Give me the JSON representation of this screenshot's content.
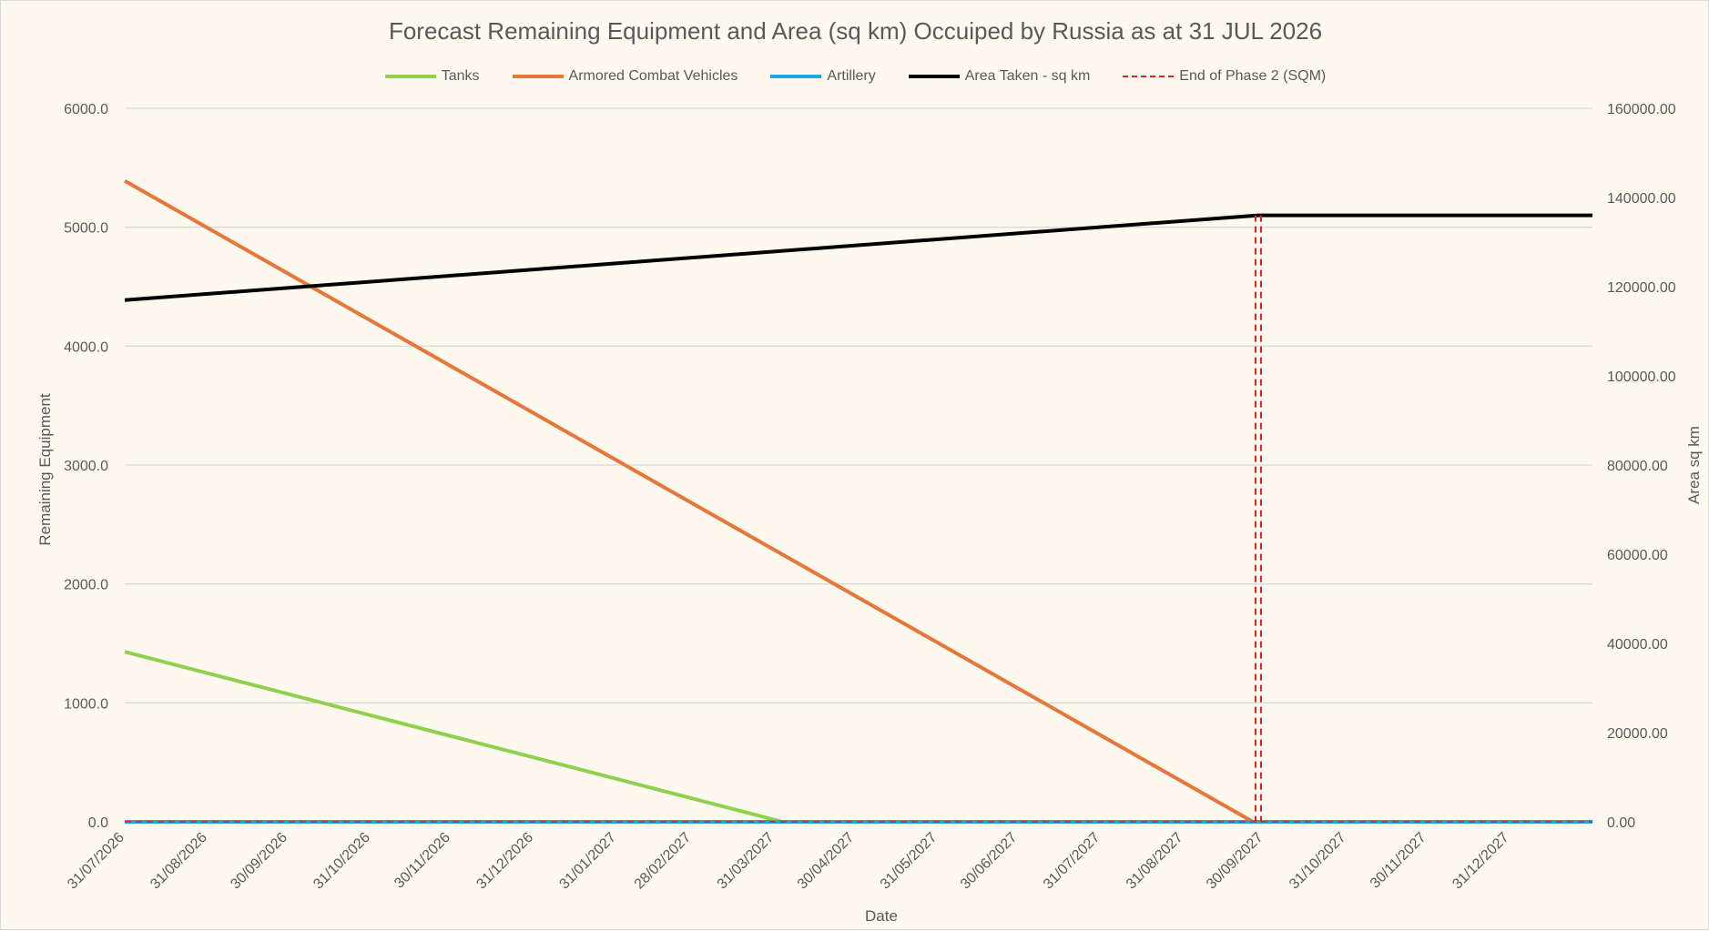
{
  "chart_data": {
    "type": "line",
    "title": "Forecast Remaining Equipment and Area (sq km) Occuiped by Russia as at 31 JUL 2026",
    "xlabel": "Date",
    "ylabel": "Remaining Equipment",
    "y2label": "Area sq km",
    "ylim": [
      0,
      6000
    ],
    "y2lim": [
      0,
      160000
    ],
    "xlim": [
      "2026-07-31",
      "2028-01-31"
    ],
    "grid": true,
    "legend_position": "top",
    "y_ticks": [
      "0.0",
      "1000.0",
      "2000.0",
      "3000.0",
      "4000.0",
      "5000.0",
      "6000.0"
    ],
    "y2_ticks": [
      "0.00",
      "20000.00",
      "40000.00",
      "60000.00",
      "80000.00",
      "100000.00",
      "120000.00",
      "140000.00",
      "160000.00"
    ],
    "x_ticks": [
      {
        "date": "2026-07-31",
        "label": "31/07/2026"
      },
      {
        "date": "2026-08-31",
        "label": "31/08/2026"
      },
      {
        "date": "2026-09-30",
        "label": "30/09/2026"
      },
      {
        "date": "2026-10-31",
        "label": "31/10/2026"
      },
      {
        "date": "2026-11-30",
        "label": "30/11/2026"
      },
      {
        "date": "2026-12-31",
        "label": "31/12/2026"
      },
      {
        "date": "2027-01-31",
        "label": "31/01/2027"
      },
      {
        "date": "2027-02-28",
        "label": "28/02/2027"
      },
      {
        "date": "2027-03-31",
        "label": "31/03/2027"
      },
      {
        "date": "2027-04-30",
        "label": "30/04/2027"
      },
      {
        "date": "2027-05-31",
        "label": "31/05/2027"
      },
      {
        "date": "2027-06-30",
        "label": "30/06/2027"
      },
      {
        "date": "2027-07-31",
        "label": "31/07/2027"
      },
      {
        "date": "2027-08-31",
        "label": "31/08/2027"
      },
      {
        "date": "2027-09-30",
        "label": "30/09/2027"
      },
      {
        "date": "2027-10-31",
        "label": "31/10/2027"
      },
      {
        "date": "2027-11-30",
        "label": "30/11/2027"
      },
      {
        "date": "2027-12-31",
        "label": "31/12/2027"
      }
    ],
    "series": [
      {
        "name": "Tanks",
        "color": "#8fd14f",
        "axis": "left",
        "dash": false,
        "points": [
          [
            "2026-07-31",
            1430
          ],
          [
            "2027-04-03",
            0
          ],
          [
            "2028-01-31",
            0
          ]
        ]
      },
      {
        "name": "Armored Combat Vehicles",
        "color": "#e8763a",
        "axis": "left",
        "dash": false,
        "points": [
          [
            "2026-07-31",
            5390
          ],
          [
            "2027-09-26",
            0
          ],
          [
            "2028-01-31",
            0
          ]
        ]
      },
      {
        "name": "Artillery",
        "color": "#1fa7e0",
        "axis": "left",
        "dash": false,
        "points": [
          [
            "2026-07-31",
            0
          ],
          [
            "2028-01-31",
            0
          ]
        ]
      },
      {
        "name": "Area Taken - sq km",
        "color": "#000000",
        "axis": "right",
        "dash": false,
        "points": [
          [
            "2026-07-31",
            117000
          ],
          [
            "2027-09-28",
            136000
          ],
          [
            "2028-01-31",
            136000
          ]
        ]
      },
      {
        "name": "End of Phase 2 (SQM)",
        "color": "#e02020",
        "axis": "right",
        "dash": true,
        "points": [
          [
            "2027-09-28",
            136000
          ],
          [
            "2027-09-28",
            0
          ]
        ]
      }
    ]
  }
}
